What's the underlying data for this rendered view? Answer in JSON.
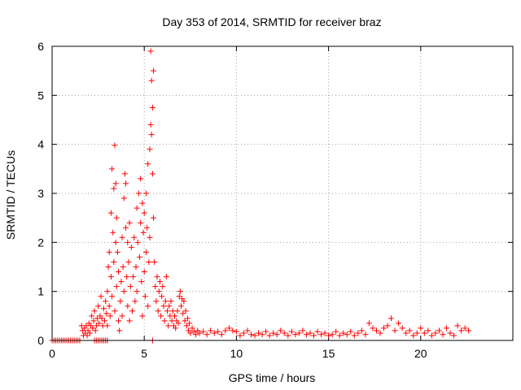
{
  "chart_data": {
    "type": "scatter",
    "title": "Day 353 of 2014, SRMTID for receiver braz",
    "xlabel": "GPS time / hours",
    "ylabel": "SRMTID / TECUs",
    "xlim": [
      0,
      25
    ],
    "ylim": [
      0,
      6
    ],
    "xticks": [
      0,
      5,
      10,
      15,
      20
    ],
    "xtick_labels": [
      "0",
      "5",
      "10",
      "15",
      "20"
    ],
    "yticks": [
      0,
      1,
      2,
      3,
      4,
      5,
      6
    ],
    "ytick_labels": [
      "0",
      "1",
      "2",
      "3",
      "4",
      "5",
      "6"
    ],
    "grid": true,
    "marker": "+",
    "color": "#ff0000",
    "series": [
      {
        "name": "SRMTID",
        "points": [
          [
            0.0,
            0.0
          ],
          [
            0.1,
            0.0
          ],
          [
            0.2,
            0.0
          ],
          [
            0.3,
            0.0
          ],
          [
            0.4,
            0.0
          ],
          [
            0.5,
            0.0
          ],
          [
            0.6,
            0.0
          ],
          [
            0.7,
            0.0
          ],
          [
            0.8,
            0.0
          ],
          [
            0.9,
            0.0
          ],
          [
            1.0,
            0.0
          ],
          [
            1.1,
            0.0
          ],
          [
            1.2,
            0.0
          ],
          [
            1.3,
            0.0
          ],
          [
            1.4,
            0.0
          ],
          [
            1.5,
            0.0
          ],
          [
            2.3,
            0.0
          ],
          [
            2.4,
            0.0
          ],
          [
            2.5,
            0.0
          ],
          [
            2.6,
            0.0
          ],
          [
            2.7,
            0.0
          ],
          [
            2.8,
            0.0
          ],
          [
            2.9,
            0.0
          ],
          [
            3.0,
            0.0
          ],
          [
            5.45,
            0.0
          ],
          [
            1.6,
            0.3
          ],
          [
            1.65,
            0.2
          ],
          [
            1.7,
            0.1
          ],
          [
            1.75,
            0.25
          ],
          [
            1.8,
            0.15
          ],
          [
            1.85,
            0.3
          ],
          [
            1.9,
            0.1
          ],
          [
            1.95,
            0.2
          ],
          [
            2.0,
            0.35
          ],
          [
            2.05,
            0.15
          ],
          [
            2.1,
            0.3
          ],
          [
            2.15,
            0.5
          ],
          [
            2.2,
            0.25
          ],
          [
            2.25,
            0.4
          ],
          [
            2.3,
            0.6
          ],
          [
            2.35,
            0.2
          ],
          [
            2.4,
            0.3
          ],
          [
            2.45,
            0.45
          ],
          [
            2.5,
            0.7
          ],
          [
            2.55,
            0.35
          ],
          [
            2.6,
            0.5
          ],
          [
            2.65,
            0.9
          ],
          [
            2.7,
            0.45
          ],
          [
            2.75,
            0.3
          ],
          [
            2.8,
            0.65
          ],
          [
            2.85,
            0.4
          ],
          [
            2.9,
            0.8
          ],
          [
            2.95,
            0.55
          ],
          [
            3.0,
            1.0
          ],
          [
            3.0,
            0.3
          ],
          [
            3.05,
            1.5
          ],
          [
            3.1,
            0.7
          ],
          [
            3.1,
            1.8
          ],
          [
            3.15,
            0.5
          ],
          [
            3.2,
            2.6
          ],
          [
            3.2,
            1.3
          ],
          [
            3.25,
            3.5
          ],
          [
            3.25,
            0.9
          ],
          [
            3.3,
            2.2
          ],
          [
            3.35,
            3.1
          ],
          [
            3.35,
            1.6
          ],
          [
            3.4,
            3.98
          ],
          [
            3.4,
            0.6
          ],
          [
            3.45,
            3.2
          ],
          [
            3.45,
            2.0
          ],
          [
            3.5,
            2.5
          ],
          [
            3.5,
            1.1
          ],
          [
            3.55,
            1.8
          ],
          [
            3.6,
            0.4
          ],
          [
            3.6,
            1.4
          ],
          [
            3.65,
            0.2
          ],
          [
            3.7,
            0.8
          ],
          [
            3.75,
            1.2
          ],
          [
            3.8,
            2.1
          ],
          [
            3.8,
            0.5
          ],
          [
            3.85,
            1.5
          ],
          [
            3.9,
            2.9
          ],
          [
            3.9,
            1.0
          ],
          [
            3.95,
            3.4
          ],
          [
            4.0,
            2.3
          ],
          [
            4.0,
            3.2
          ],
          [
            4.05,
            1.3
          ],
          [
            4.1,
            2.0
          ],
          [
            4.1,
            0.7
          ],
          [
            4.15,
            1.6
          ],
          [
            4.2,
            2.4
          ],
          [
            4.2,
            0.4
          ],
          [
            4.25,
            1.1
          ],
          [
            4.3,
            1.9
          ],
          [
            4.35,
            0.6
          ],
          [
            4.4,
            1.3
          ],
          [
            4.45,
            2.1
          ],
          [
            4.5,
            0.8
          ],
          [
            4.55,
            1.5
          ],
          [
            4.6,
            2.7
          ],
          [
            4.6,
            1.0
          ],
          [
            4.65,
            2.0
          ],
          [
            4.7,
            3.0
          ],
          [
            4.75,
            1.7
          ],
          [
            4.8,
            3.3
          ],
          [
            4.8,
            2.4
          ],
          [
            4.85,
            1.2
          ],
          [
            4.9,
            2.8
          ],
          [
            4.9,
            0.5
          ],
          [
            4.95,
            2.2
          ],
          [
            5.0,
            1.4
          ],
          [
            5.0,
            2.6
          ],
          [
            5.05,
            0.9
          ],
          [
            5.1,
            1.8
          ],
          [
            5.1,
            3.0
          ],
          [
            5.15,
            2.3
          ],
          [
            5.2,
            0.7
          ],
          [
            5.2,
            3.6
          ],
          [
            5.25,
            1.6
          ],
          [
            5.3,
            2.1
          ],
          [
            5.3,
            3.9
          ],
          [
            5.35,
            4.4
          ],
          [
            5.35,
            5.9
          ],
          [
            5.4,
            5.3
          ],
          [
            5.4,
            4.2
          ],
          [
            5.45,
            4.75
          ],
          [
            5.45,
            3.4
          ],
          [
            5.5,
            5.5
          ],
          [
            5.5,
            2.5
          ],
          [
            5.55,
            1.6
          ],
          [
            5.6,
            1.1
          ],
          [
            5.65,
            0.8
          ],
          [
            5.7,
            1.3
          ],
          [
            5.75,
            0.6
          ],
          [
            5.8,
            1.0
          ],
          [
            5.85,
            1.2
          ],
          [
            5.9,
            0.5
          ],
          [
            5.95,
            0.9
          ],
          [
            6.0,
            1.1
          ],
          [
            6.05,
            0.7
          ],
          [
            6.1,
            0.4
          ],
          [
            6.15,
            0.8
          ],
          [
            6.2,
            1.3
          ],
          [
            6.25,
            0.6
          ],
          [
            6.3,
            0.3
          ],
          [
            6.35,
            0.7
          ],
          [
            6.4,
            0.5
          ],
          [
            6.45,
            0.8
          ],
          [
            6.5,
            0.4
          ],
          [
            6.55,
            0.6
          ],
          [
            6.6,
            0.3
          ],
          [
            6.65,
            0.5
          ],
          [
            6.7,
            0.25
          ],
          [
            6.75,
            0.4
          ],
          [
            6.8,
            0.6
          ],
          [
            6.85,
            0.35
          ],
          [
            6.9,
            0.9
          ],
          [
            6.95,
            1.0
          ],
          [
            7.0,
            0.7
          ],
          [
            7.05,
            0.85
          ],
          [
            7.1,
            0.55
          ],
          [
            7.15,
            0.8
          ],
          [
            7.2,
            0.4
          ],
          [
            7.25,
            0.6
          ],
          [
            7.3,
            0.3
          ],
          [
            7.35,
            0.45
          ],
          [
            7.4,
            0.2
          ],
          [
            7.45,
            0.35
          ],
          [
            7.5,
            0.15
          ],
          [
            7.6,
            0.25
          ],
          [
            7.7,
            0.18
          ],
          [
            7.8,
            0.12
          ],
          [
            7.9,
            0.2
          ],
          [
            8.0,
            0.15
          ],
          [
            8.2,
            0.18
          ],
          [
            8.4,
            0.12
          ],
          [
            8.6,
            0.2
          ],
          [
            8.8,
            0.15
          ],
          [
            9.0,
            0.18
          ],
          [
            9.2,
            0.12
          ],
          [
            9.4,
            0.2
          ],
          [
            9.6,
            0.25
          ],
          [
            9.8,
            0.2
          ],
          [
            10.0,
            0.18
          ],
          [
            10.2,
            0.1
          ],
          [
            10.4,
            0.15
          ],
          [
            10.6,
            0.2
          ],
          [
            10.8,
            0.12
          ],
          [
            11.0,
            0.1
          ],
          [
            11.2,
            0.15
          ],
          [
            11.4,
            0.12
          ],
          [
            11.6,
            0.18
          ],
          [
            11.8,
            0.1
          ],
          [
            12.0,
            0.15
          ],
          [
            12.2,
            0.12
          ],
          [
            12.4,
            0.2
          ],
          [
            12.6,
            0.15
          ],
          [
            12.8,
            0.1
          ],
          [
            13.0,
            0.18
          ],
          [
            13.2,
            0.12
          ],
          [
            13.4,
            0.15
          ],
          [
            13.6,
            0.2
          ],
          [
            13.8,
            0.12
          ],
          [
            14.0,
            0.15
          ],
          [
            14.2,
            0.1
          ],
          [
            14.4,
            0.18
          ],
          [
            14.6,
            0.12
          ],
          [
            14.8,
            0.15
          ],
          [
            15.0,
            0.1
          ],
          [
            15.2,
            0.12
          ],
          [
            15.4,
            0.18
          ],
          [
            15.6,
            0.1
          ],
          [
            15.8,
            0.15
          ],
          [
            16.0,
            0.12
          ],
          [
            16.2,
            0.18
          ],
          [
            16.4,
            0.1
          ],
          [
            16.6,
            0.15
          ],
          [
            16.8,
            0.2
          ],
          [
            17.0,
            0.12
          ],
          [
            17.2,
            0.35
          ],
          [
            17.4,
            0.25
          ],
          [
            17.6,
            0.2
          ],
          [
            17.8,
            0.15
          ],
          [
            18.0,
            0.25
          ],
          [
            18.2,
            0.3
          ],
          [
            18.4,
            0.45
          ],
          [
            18.6,
            0.2
          ],
          [
            18.8,
            0.35
          ],
          [
            19.0,
            0.25
          ],
          [
            19.2,
            0.15
          ],
          [
            19.4,
            0.2
          ],
          [
            19.6,
            0.1
          ],
          [
            19.8,
            0.15
          ],
          [
            20.0,
            0.25
          ],
          [
            20.2,
            0.15
          ],
          [
            20.4,
            0.2
          ],
          [
            20.6,
            0.1
          ],
          [
            20.8,
            0.15
          ],
          [
            21.0,
            0.2
          ],
          [
            21.2,
            0.12
          ],
          [
            21.4,
            0.25
          ],
          [
            21.6,
            0.15
          ],
          [
            21.8,
            0.1
          ],
          [
            22.0,
            0.3
          ],
          [
            22.2,
            0.2
          ],
          [
            22.4,
            0.25
          ],
          [
            22.6,
            0.2
          ]
        ]
      }
    ]
  }
}
